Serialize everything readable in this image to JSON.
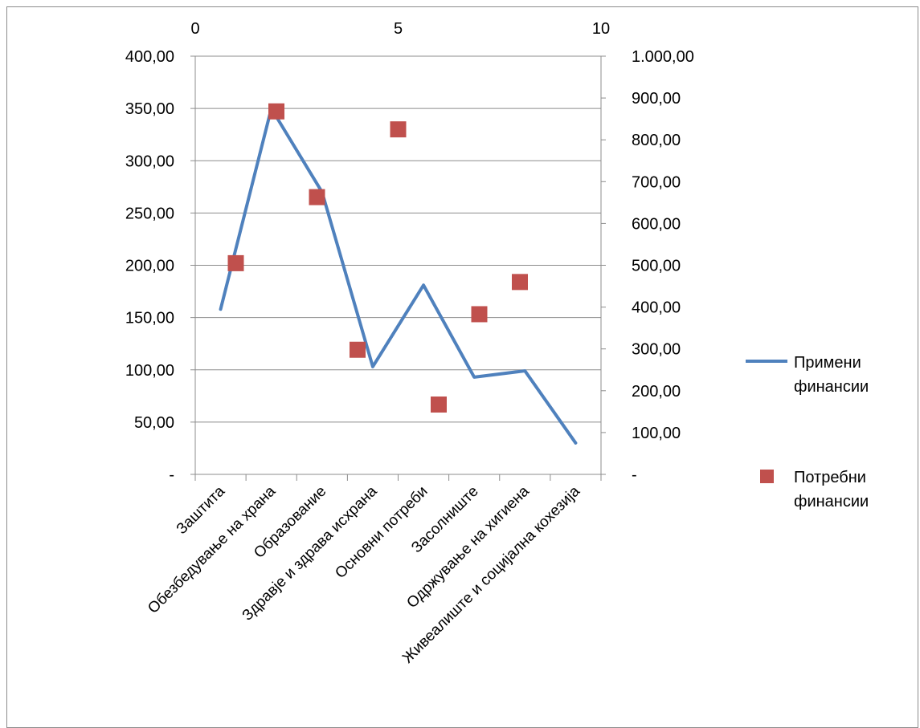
{
  "chart_data": {
    "type": "line",
    "categories": [
      "Заштита",
      "Обезбедување на храна",
      "Образование",
      "Здравје и здрава исхрана",
      "Основни потреби",
      "Засолниште",
      "Одржување на хигиена",
      "Живеалиште и социјална кохезија"
    ],
    "series": [
      {
        "name": "Примени финансии",
        "type": "line",
        "axis": "left",
        "color": "#4f81bd",
        "values": [
          158,
          350,
          270,
          103,
          181,
          93,
          99,
          30
        ]
      },
      {
        "name": "Потребни финансии",
        "type": "scatter",
        "axis": "right",
        "color": "#c0504d",
        "x": [
          1,
          2,
          3,
          4,
          5,
          6,
          7,
          8
        ],
        "values": [
          505,
          868,
          663,
          298,
          825,
          167,
          383,
          460
        ]
      }
    ],
    "left_axis": {
      "ylim": [
        0,
        400
      ],
      "tick_labels": [
        "-",
        "50,00",
        "100,00",
        "150,00",
        "200,00",
        "250,00",
        "300,00",
        "350,00",
        "400,00"
      ]
    },
    "right_axis": {
      "ylim": [
        0,
        1000
      ],
      "tick_labels": [
        "-",
        "100,00",
        "200,00",
        "300,00",
        "400,00",
        "500,00",
        "600,00",
        "700,00",
        "800,00",
        "900,00",
        "1.000,00"
      ]
    },
    "top_axis": {
      "xlim": [
        0,
        10
      ],
      "tick_labels": [
        "0",
        "5",
        "10"
      ]
    },
    "grid": true,
    "legend_position": "right"
  }
}
